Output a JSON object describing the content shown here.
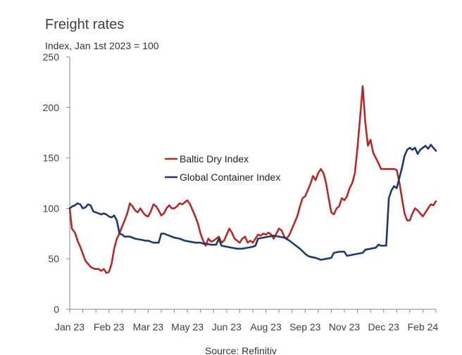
{
  "chart_data": {
    "type": "line",
    "title": "Freight rates",
    "subtitle": "Index, Jan 1st 2023 = 100",
    "source": "Source: Refinitiv",
    "xlabel": "",
    "ylabel": "",
    "ylim": [
      0,
      250
    ],
    "yticks": [
      0,
      50,
      100,
      150,
      200,
      250
    ],
    "xlim": [
      0,
      14
    ],
    "xticks": [
      {
        "label": "Jan 23",
        "pos": 0
      },
      {
        "label": "Feb 23",
        "pos": 1.5
      },
      {
        "label": "Mar 23",
        "pos": 3
      },
      {
        "label": "May 23",
        "pos": 4.5
      },
      {
        "label": "Jun 23",
        "pos": 6
      },
      {
        "label": "Aug 23",
        "pos": 7.5
      },
      {
        "label": "Sep 23",
        "pos": 9
      },
      {
        "label": "Nov 23",
        "pos": 10.5
      },
      {
        "label": "Dec 23",
        "pos": 12
      },
      {
        "label": "Feb 24",
        "pos": 13.5
      }
    ],
    "legend": "center-left",
    "series": [
      {
        "name": "Baltic Dry Index",
        "color": "#b22b2b",
        "points": [
          [
            0.0,
            100
          ],
          [
            0.08,
            80
          ],
          [
            0.2,
            76
          ],
          [
            0.3,
            68
          ],
          [
            0.4,
            62
          ],
          [
            0.5,
            55
          ],
          [
            0.6,
            48
          ],
          [
            0.7,
            45
          ],
          [
            0.8,
            42
          ],
          [
            0.95,
            40
          ],
          [
            1.1,
            40
          ],
          [
            1.2,
            38
          ],
          [
            1.3,
            40
          ],
          [
            1.4,
            36
          ],
          [
            1.5,
            37
          ],
          [
            1.6,
            45
          ],
          [
            1.7,
            60
          ],
          [
            1.8,
            70
          ],
          [
            1.9,
            75
          ],
          [
            2.0,
            82
          ],
          [
            2.1,
            88
          ],
          [
            2.2,
            95
          ],
          [
            2.3,
            105
          ],
          [
            2.4,
            102
          ],
          [
            2.5,
            98
          ],
          [
            2.6,
            96
          ],
          [
            2.7,
            100
          ],
          [
            2.8,
            96
          ],
          [
            2.9,
            93
          ],
          [
            3.0,
            92
          ],
          [
            3.1,
            97
          ],
          [
            3.2,
            104
          ],
          [
            3.3,
            102
          ],
          [
            3.4,
            98
          ],
          [
            3.5,
            93
          ],
          [
            3.6,
            95
          ],
          [
            3.7,
            100
          ],
          [
            3.8,
            103
          ],
          [
            3.9,
            100
          ],
          [
            4.0,
            100
          ],
          [
            4.1,
            102
          ],
          [
            4.2,
            105
          ],
          [
            4.3,
            104
          ],
          [
            4.4,
            106
          ],
          [
            4.5,
            108
          ],
          [
            4.6,
            104
          ],
          [
            4.7,
            98
          ],
          [
            4.8,
            92
          ],
          [
            4.9,
            85
          ],
          [
            5.0,
            75
          ],
          [
            5.1,
            68
          ],
          [
            5.2,
            63
          ],
          [
            5.3,
            70
          ],
          [
            5.4,
            67
          ],
          [
            5.5,
            68
          ],
          [
            5.6,
            70
          ],
          [
            5.7,
            72
          ],
          [
            5.8,
            66
          ],
          [
            5.9,
            68
          ],
          [
            6.0,
            74
          ],
          [
            6.1,
            80
          ],
          [
            6.2,
            76
          ],
          [
            6.3,
            70
          ],
          [
            6.4,
            68
          ],
          [
            6.5,
            66
          ],
          [
            6.6,
            70
          ],
          [
            6.7,
            72
          ],
          [
            6.8,
            66
          ],
          [
            6.9,
            68
          ],
          [
            7.0,
            66
          ],
          [
            7.1,
            70
          ],
          [
            7.2,
            74
          ],
          [
            7.3,
            73
          ],
          [
            7.4,
            75
          ],
          [
            7.5,
            74
          ],
          [
            7.6,
            76
          ],
          [
            7.7,
            74
          ],
          [
            7.8,
            70
          ],
          [
            7.9,
            75
          ],
          [
            8.0,
            80
          ],
          [
            8.1,
            78
          ],
          [
            8.2,
            72
          ],
          [
            8.3,
            70
          ],
          [
            8.4,
            74
          ],
          [
            8.5,
            80
          ],
          [
            8.6,
            86
          ],
          [
            8.7,
            92
          ],
          [
            8.8,
            102
          ],
          [
            8.9,
            110
          ],
          [
            9.0,
            112
          ],
          [
            9.1,
            118
          ],
          [
            9.2,
            124
          ],
          [
            9.3,
            132
          ],
          [
            9.4,
            128
          ],
          [
            9.5,
            135
          ],
          [
            9.6,
            139
          ],
          [
            9.7,
            135
          ],
          [
            9.8,
            125
          ],
          [
            9.9,
            110
          ],
          [
            10.0,
            96
          ],
          [
            10.1,
            94
          ],
          [
            10.2,
            100
          ],
          [
            10.3,
            102
          ],
          [
            10.4,
            110
          ],
          [
            10.5,
            108
          ],
          [
            10.6,
            112
          ],
          [
            10.7,
            120
          ],
          [
            10.8,
            125
          ],
          [
            10.9,
            135
          ],
          [
            11.0,
            160
          ],
          [
            11.1,
            190
          ],
          [
            11.2,
            221
          ],
          [
            11.3,
            185
          ],
          [
            11.4,
            162
          ],
          [
            11.5,
            168
          ],
          [
            11.6,
            155
          ],
          [
            11.7,
            150
          ],
          [
            11.8,
            145
          ],
          [
            11.9,
            139
          ],
          [
            12.0,
            139
          ],
          [
            12.2,
            139
          ],
          [
            12.4,
            139
          ],
          [
            12.5,
            138
          ],
          [
            12.6,
            126
          ],
          [
            12.7,
            110
          ],
          [
            12.8,
            95
          ],
          [
            12.9,
            88
          ],
          [
            13.0,
            88
          ],
          [
            13.1,
            95
          ],
          [
            13.2,
            100
          ],
          [
            13.3,
            98
          ],
          [
            13.4,
            95
          ],
          [
            13.5,
            92
          ],
          [
            13.6,
            96
          ],
          [
            13.7,
            100
          ],
          [
            13.8,
            104
          ],
          [
            13.9,
            103
          ],
          [
            14.0,
            107
          ]
        ]
      },
      {
        "name": "Global Container Index",
        "color": "#1f3a68",
        "points": [
          [
            0.0,
            100
          ],
          [
            0.1,
            102
          ],
          [
            0.2,
            103
          ],
          [
            0.3,
            105
          ],
          [
            0.4,
            104
          ],
          [
            0.5,
            100
          ],
          [
            0.6,
            101
          ],
          [
            0.7,
            104
          ],
          [
            0.8,
            103
          ],
          [
            0.9,
            97
          ],
          [
            1.0,
            96
          ],
          [
            1.1,
            95
          ],
          [
            1.2,
            94
          ],
          [
            1.3,
            95
          ],
          [
            1.4,
            94
          ],
          [
            1.5,
            92
          ],
          [
            1.6,
            91
          ],
          [
            1.7,
            93
          ],
          [
            1.8,
            88
          ],
          [
            1.9,
            75
          ],
          [
            2.0,
            74
          ],
          [
            2.1,
            72
          ],
          [
            2.3,
            72
          ],
          [
            2.5,
            70
          ],
          [
            2.7,
            69
          ],
          [
            2.9,
            68
          ],
          [
            3.0,
            68
          ],
          [
            3.1,
            67
          ],
          [
            3.2,
            66
          ],
          [
            3.4,
            66
          ],
          [
            3.5,
            75
          ],
          [
            3.6,
            75
          ],
          [
            3.8,
            73
          ],
          [
            3.9,
            72
          ],
          [
            4.0,
            71
          ],
          [
            4.2,
            70
          ],
          [
            4.3,
            69
          ],
          [
            4.4,
            68
          ],
          [
            4.6,
            67
          ],
          [
            4.8,
            66
          ],
          [
            5.0,
            66
          ],
          [
            5.1,
            65
          ],
          [
            5.2,
            65
          ],
          [
            5.4,
            64
          ],
          [
            5.6,
            64
          ],
          [
            5.7,
            70
          ],
          [
            5.8,
            63
          ],
          [
            6.0,
            62
          ],
          [
            6.2,
            61
          ],
          [
            6.4,
            60
          ],
          [
            6.6,
            60
          ],
          [
            6.8,
            61
          ],
          [
            7.0,
            62
          ],
          [
            7.1,
            63
          ],
          [
            7.2,
            70
          ],
          [
            7.4,
            71
          ],
          [
            7.6,
            72
          ],
          [
            7.8,
            73
          ],
          [
            8.0,
            72
          ],
          [
            8.2,
            71
          ],
          [
            8.4,
            68
          ],
          [
            8.6,
            64
          ],
          [
            8.8,
            60
          ],
          [
            9.0,
            55
          ],
          [
            9.1,
            53
          ],
          [
            9.2,
            52
          ],
          [
            9.4,
            51
          ],
          [
            9.6,
            49
          ],
          [
            9.8,
            50
          ],
          [
            10.0,
            51
          ],
          [
            10.1,
            56
          ],
          [
            10.3,
            57
          ],
          [
            10.5,
            57
          ],
          [
            10.6,
            53
          ],
          [
            10.8,
            54
          ],
          [
            11.0,
            55
          ],
          [
            11.2,
            56
          ],
          [
            11.3,
            59
          ],
          [
            11.5,
            60
          ],
          [
            11.7,
            61
          ],
          [
            11.8,
            64
          ],
          [
            11.9,
            63
          ],
          [
            12.0,
            63
          ],
          [
            12.1,
            63
          ],
          [
            12.2,
            110
          ],
          [
            12.3,
            118
          ],
          [
            12.4,
            122
          ],
          [
            12.5,
            120
          ],
          [
            12.6,
            130
          ],
          [
            12.7,
            140
          ],
          [
            12.8,
            152
          ],
          [
            12.9,
            158
          ],
          [
            13.0,
            160
          ],
          [
            13.1,
            158
          ],
          [
            13.2,
            160
          ],
          [
            13.3,
            154
          ],
          [
            13.4,
            158
          ],
          [
            13.5,
            160
          ],
          [
            13.6,
            162
          ],
          [
            13.7,
            159
          ],
          [
            13.8,
            163
          ],
          [
            13.9,
            160
          ],
          [
            14.0,
            157
          ]
        ]
      }
    ]
  }
}
